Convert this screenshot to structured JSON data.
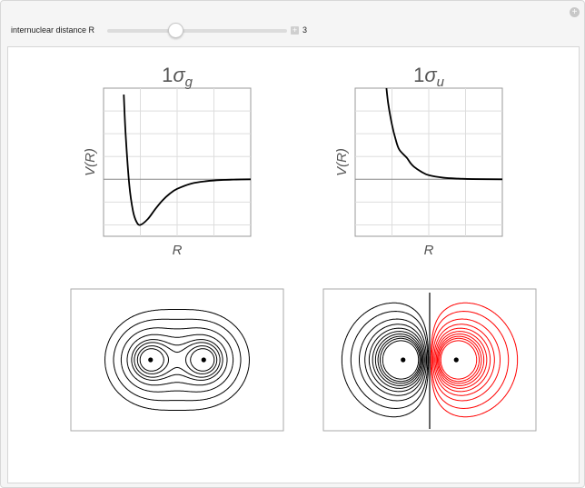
{
  "controls": {
    "slider_label": "internuclear distance R",
    "value": "3",
    "plus_icon": "plus-icon",
    "options_icon": "circle-plus-icon"
  },
  "chart_data": [
    {
      "type": "line",
      "title": {
        "main": "1",
        "symbol": "σ",
        "subscript": "g"
      },
      "xlabel": "R",
      "ylabel": "V(R)",
      "xlim": [
        0,
        4
      ],
      "ylim": [
        -2.5,
        4
      ],
      "grid": true,
      "x": [
        0.55,
        0.6,
        0.7,
        0.8,
        0.9,
        1.0,
        1.2,
        1.4,
        1.6,
        1.8,
        2.0,
        2.4,
        2.8,
        3.2,
        3.6,
        4.0
      ],
      "y": [
        3.72,
        1.98,
        -0.25,
        -1.39,
        -1.88,
        -2.0,
        -1.75,
        -1.32,
        -0.93,
        -0.63,
        -0.42,
        -0.18,
        -0.08,
        -0.03,
        -0.01,
        0
      ]
    },
    {
      "type": "line",
      "title": {
        "main": "1",
        "symbol": "σ",
        "subscript": "u"
      },
      "xlabel": "R",
      "ylabel": "V(R)",
      "xlim": [
        0,
        4
      ],
      "ylim": [
        -2.5,
        4
      ],
      "grid": true,
      "x": [
        0.85,
        0.9,
        1.0,
        1.1,
        1.2,
        1.4,
        1.5,
        1.6,
        1.8,
        2.0,
        2.4,
        2.8,
        3.2,
        4.0
      ],
      "y": [
        4.0,
        3.3,
        2.4,
        1.75,
        1.3,
        0.95,
        0.72,
        0.55,
        0.33,
        0.18,
        0.07,
        0.03,
        0.01,
        0
      ]
    }
  ],
  "contours": {
    "R": 3,
    "positive_color": "#000000",
    "negative_color": "#ff0000",
    "gerade_levels": [
      0.08,
      0.13,
      0.2,
      0.28,
      0.36,
      0.42,
      0.5,
      0.58
    ],
    "ungerade_levels": [
      0.03,
      0.05,
      0.08,
      0.11,
      0.14,
      0.17,
      0.2,
      0.23,
      0.26,
      0.3
    ]
  }
}
